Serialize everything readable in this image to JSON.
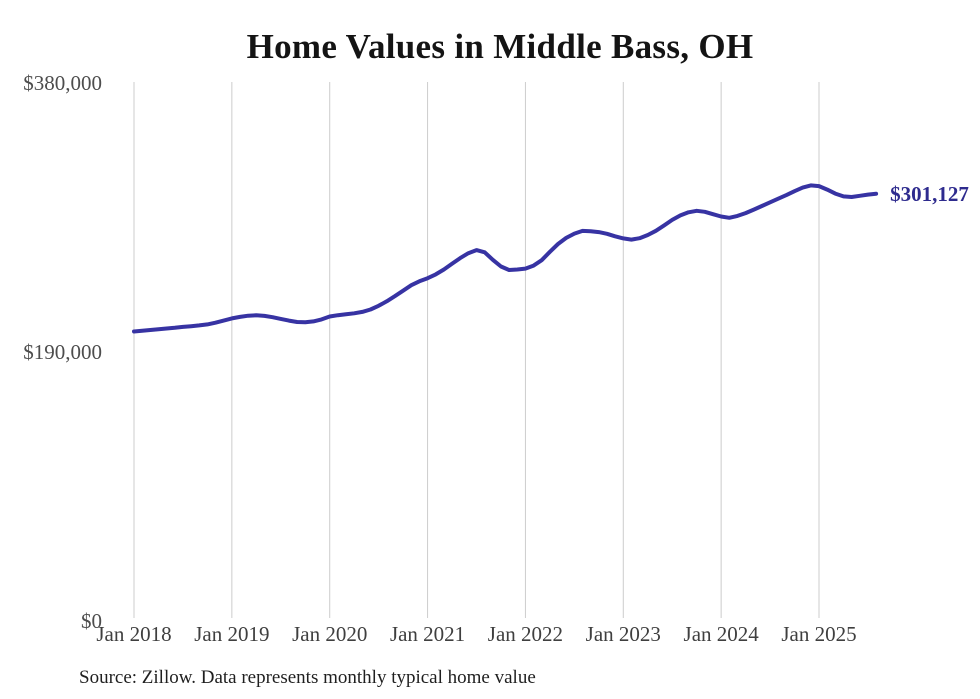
{
  "page": {
    "source_note": "Source: Zillow. Data represents monthly typical home value"
  },
  "colors": {
    "line": "#3733a3",
    "latest_label": "#2e2b8e",
    "gridline": "#cccccc"
  },
  "chart_data": {
    "type": "line",
    "title": "Home Values in Middle Bass, OH",
    "xlabel": "",
    "ylabel": "",
    "ylim": [
      0,
      380000
    ],
    "grid": "vertical-only",
    "legend": "none",
    "last_value_label": "$301,127",
    "yticks": [
      {
        "value": 0,
        "label": "$0"
      },
      {
        "value": 190000,
        "label": "$190,000"
      },
      {
        "value": 380000,
        "label": "$380,000"
      }
    ],
    "xticks": [
      "Jan 2018",
      "Jan 2019",
      "Jan 2020",
      "Jan 2021",
      "Jan 2022",
      "Jan 2023",
      "Jan 2024",
      "Jan 2025"
    ],
    "x": [
      "2018-01",
      "2018-02",
      "2018-03",
      "2018-04",
      "2018-05",
      "2018-06",
      "2018-07",
      "2018-08",
      "2018-09",
      "2018-10",
      "2018-11",
      "2018-12",
      "2019-01",
      "2019-02",
      "2019-03",
      "2019-04",
      "2019-05",
      "2019-06",
      "2019-07",
      "2019-08",
      "2019-09",
      "2019-10",
      "2019-11",
      "2019-12",
      "2020-01",
      "2020-02",
      "2020-03",
      "2020-04",
      "2020-05",
      "2020-06",
      "2020-07",
      "2020-08",
      "2020-09",
      "2020-10",
      "2020-11",
      "2020-12",
      "2021-01",
      "2021-02",
      "2021-03",
      "2021-04",
      "2021-05",
      "2021-06",
      "2021-07",
      "2021-08",
      "2021-09",
      "2021-10",
      "2021-11",
      "2021-12",
      "2022-01",
      "2022-02",
      "2022-03",
      "2022-04",
      "2022-05",
      "2022-06",
      "2022-07",
      "2022-08",
      "2022-09",
      "2022-10",
      "2022-11",
      "2022-12",
      "2023-01",
      "2023-02",
      "2023-03",
      "2023-04",
      "2023-05",
      "2023-06",
      "2023-07",
      "2023-08",
      "2023-09",
      "2023-10",
      "2023-11",
      "2023-12",
      "2024-01",
      "2024-02",
      "2024-03",
      "2024-04",
      "2024-05",
      "2024-06",
      "2024-07",
      "2024-08",
      "2024-09",
      "2024-10",
      "2024-11",
      "2024-12",
      "2025-01",
      "2025-02",
      "2025-03",
      "2025-04",
      "2025-05",
      "2025-06",
      "2025-07",
      "2025-08"
    ],
    "values": [
      203800,
      204300,
      204800,
      205400,
      205900,
      206400,
      207000,
      207500,
      208100,
      208800,
      210000,
      211500,
      213000,
      214100,
      214900,
      215200,
      214800,
      213900,
      212700,
      211500,
      210500,
      210300,
      210900,
      212300,
      214400,
      215300,
      215900,
      216600,
      217600,
      219300,
      221900,
      225100,
      228800,
      232600,
      236500,
      239200,
      241400,
      244100,
      247600,
      251600,
      255600,
      259100,
      261300,
      259700,
      254400,
      249700,
      247200,
      247600,
      248200,
      250300,
      254100,
      260100,
      265600,
      269900,
      272900,
      274800,
      274600,
      274000,
      272800,
      271000,
      269500,
      268700,
      269700,
      271900,
      274900,
      278700,
      282600,
      285800,
      288000,
      289000,
      288300,
      286600,
      285000,
      284100,
      285400,
      287400,
      289900,
      292400,
      295000,
      297600,
      300100,
      302900,
      305400,
      307000,
      306500,
      304000,
      301200,
      299200,
      298800,
      299600,
      300500,
      301127
    ]
  }
}
